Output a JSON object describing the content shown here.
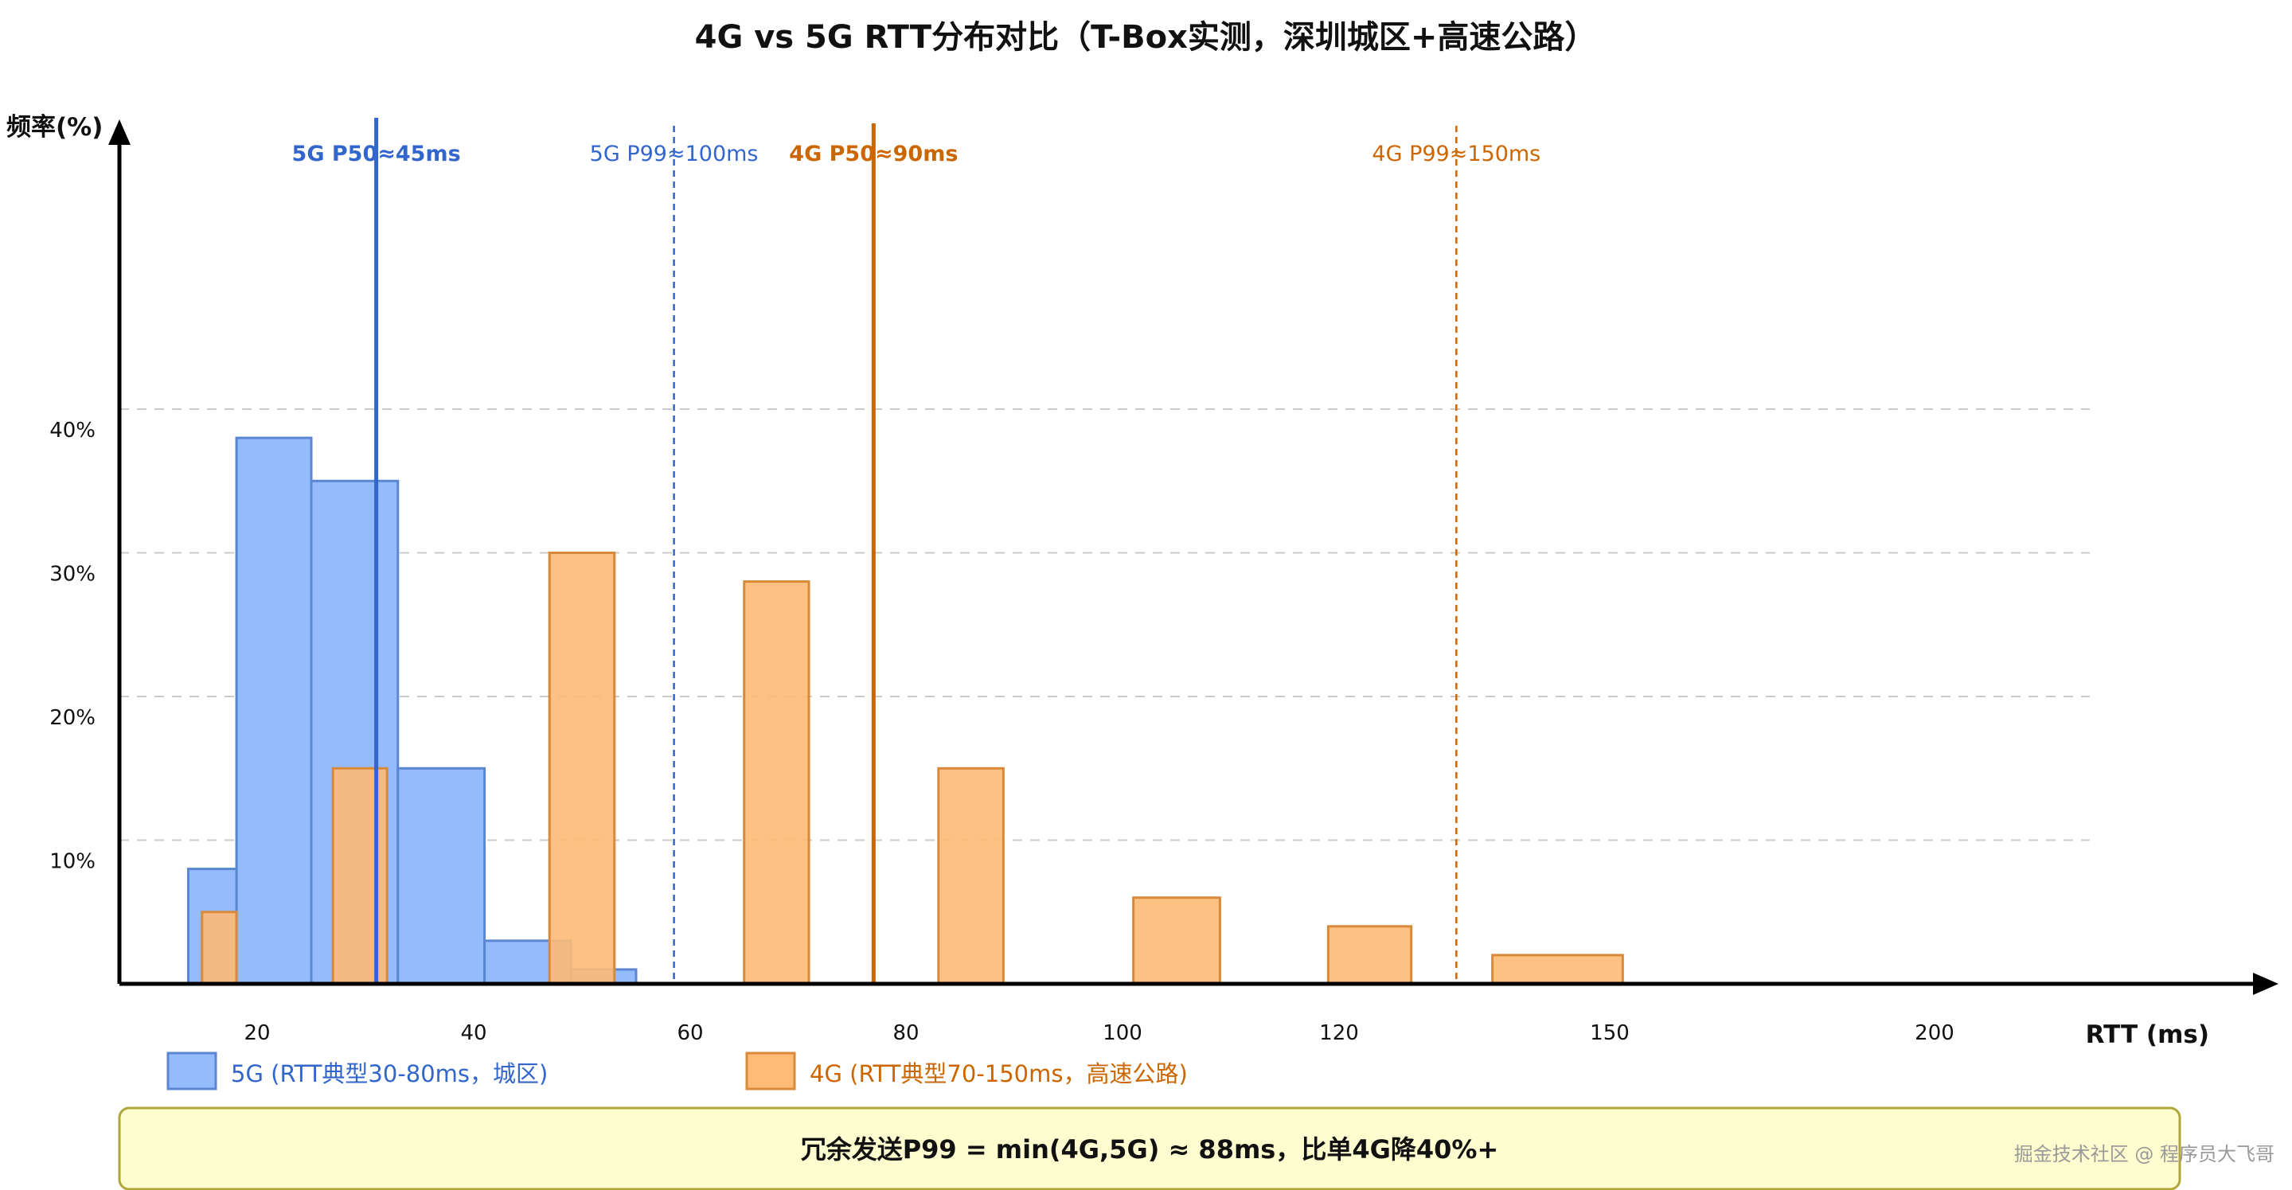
{
  "chart_data": {
    "type": "bar",
    "title": "4G vs 5G RTT分布对比（T-Box实测，深圳城区+高速公路）",
    "ylabel": "频率(%)",
    "xlabel": "RTT (ms)",
    "ylim": [
      0,
      40
    ],
    "yticks": [
      {
        "value": 10,
        "label": "10%"
      },
      {
        "value": 20,
        "label": "20%"
      },
      {
        "value": 30,
        "label": "30%"
      },
      {
        "value": 40,
        "label": "40%"
      }
    ],
    "xticks": [
      {
        "value": 20,
        "label": "20"
      },
      {
        "value": 40,
        "label": "40"
      },
      {
        "value": 60,
        "label": "60"
      },
      {
        "value": 80,
        "label": "80"
      },
      {
        "value": 100,
        "label": "100"
      },
      {
        "value": 120,
        "label": "120"
      },
      {
        "value": 150,
        "label": "150"
      },
      {
        "value": 200,
        "label": "200"
      }
    ],
    "grid": true,
    "legend_position": "bottom-left",
    "series": [
      {
        "name": "5G (RTT典型30-80ms，城区)",
        "color": "#94bbfb",
        "stroke": "#5a86d2",
        "bars": [
          {
            "x0": 10,
            "x1": 17,
            "value": 8
          },
          {
            "x0": 17,
            "x1": 25,
            "value": 38
          },
          {
            "x0": 25,
            "x1": 33,
            "value": 35
          },
          {
            "x0": 33,
            "x1": 41,
            "value": 15
          },
          {
            "x0": 41,
            "x1": 49,
            "value": 3
          },
          {
            "x0": 49,
            "x1": 55,
            "value": 1
          }
        ]
      },
      {
        "name": "4G (RTT典型70-150ms，高速公路)",
        "color": "#fdbb76",
        "stroke": "#d88a3a",
        "bars": [
          {
            "x0": 12,
            "x1": 17,
            "value": 5
          },
          {
            "x0": 27,
            "x1": 32,
            "value": 15
          },
          {
            "x0": 47,
            "x1": 53,
            "value": 30
          },
          {
            "x0": 65,
            "x1": 71,
            "value": 28
          },
          {
            "x0": 83,
            "x1": 89,
            "value": 15
          },
          {
            "x0": 101,
            "x1": 109,
            "value": 6
          },
          {
            "x0": 119,
            "x1": 128,
            "value": 4
          },
          {
            "x0": 137,
            "x1": 152,
            "value": 2
          }
        ]
      }
    ],
    "reference_lines": [
      {
        "label": "5G P50≈45ms",
        "x": 31,
        "color": "#3366cc",
        "style": "solid",
        "bold": true
      },
      {
        "label": "5G P99≈100ms",
        "x": 58.5,
        "color": "#3366cc",
        "style": "dashed",
        "bold": false
      },
      {
        "label": "4G P50≈90ms",
        "x": 77,
        "color": "#cc6600",
        "style": "solid",
        "bold": true
      },
      {
        "label": "4G P99≈150ms",
        "x": 133,
        "color": "#cc6600",
        "style": "dashed",
        "bold": false
      }
    ]
  },
  "note": {
    "text": "冗余发送P99 = min(4G,5G) ≈ 88ms，比单4G降40%+",
    "background": "#fdfdd0",
    "border": "#b1a63a"
  },
  "watermark": "掘金技术社区 @ 程序员大飞哥"
}
